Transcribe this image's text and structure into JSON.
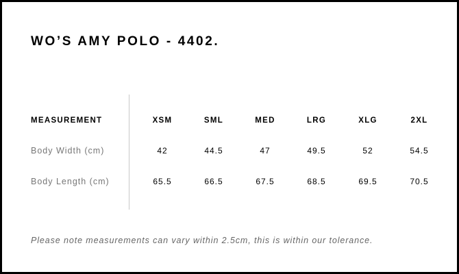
{
  "title": "WO’S AMY POLO - 4402.",
  "table": {
    "header": {
      "label": "MEASUREMENT",
      "sizes": [
        "XSM",
        "SML",
        "MED",
        "LRG",
        "XLG",
        "2XL"
      ]
    },
    "rows": [
      {
        "label": "Body Width (cm)",
        "values": [
          "42",
          "44.5",
          "47",
          "49.5",
          "52",
          "54.5"
        ]
      },
      {
        "label": "Body Length (cm)",
        "values": [
          "65.5",
          "66.5",
          "67.5",
          "68.5",
          "69.5",
          "70.5"
        ]
      }
    ]
  },
  "note": "Please note measurements can vary within 2.5cm, this is within our tolerance."
}
